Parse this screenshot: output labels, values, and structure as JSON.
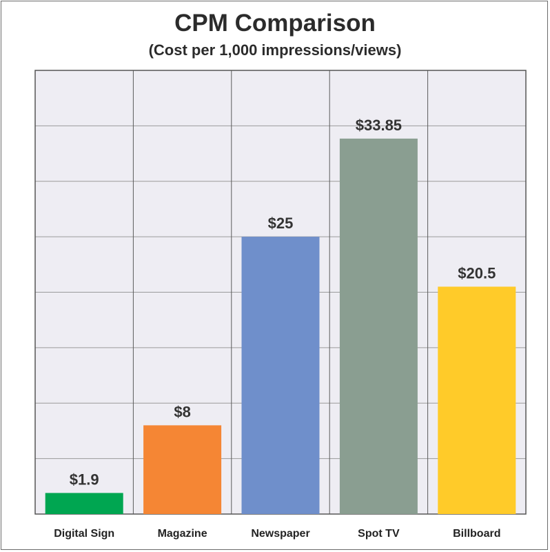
{
  "chart_data": {
    "type": "bar",
    "title": "CPM Comparison",
    "subtitle": "(Cost per 1,000 impressions/views)",
    "xlabel": "",
    "ylabel": "",
    "ylim": [
      0,
      40
    ],
    "grid": true,
    "legend": "none",
    "categories": [
      "Digital Sign",
      "Magazine",
      "Newspaper",
      "Spot TV",
      "Billboard"
    ],
    "values": [
      1.9,
      8,
      25,
      33.85,
      20.5
    ],
    "value_labels": [
      "$1.9",
      "$8",
      "$25",
      "$33.85",
      "$20.5"
    ],
    "colors": [
      "#00a651",
      "#f58634",
      "#6f8fcb",
      "#8a9e91",
      "#ffcb29"
    ]
  }
}
